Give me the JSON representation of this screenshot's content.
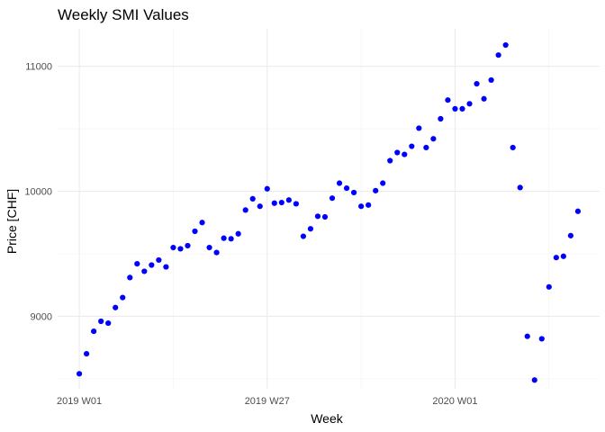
{
  "chart_data": {
    "type": "scatter",
    "title": "Weekly SMI Values",
    "xlabel": "Week",
    "ylabel": "Price [CHF]",
    "x_tick_labels": [
      {
        "week_index": 0,
        "label": "2019 W01"
      },
      {
        "week_index": 26,
        "label": "2019 W27"
      },
      {
        "week_index": 52,
        "label": "2020 W01"
      }
    ],
    "y_ticks": [
      9000,
      10000,
      11000
    ],
    "ylim": [
      8420,
      11300
    ],
    "grid": true,
    "point_color": "#0000ff",
    "series": [
      {
        "x": [
          0,
          1,
          2,
          3,
          4,
          5,
          6,
          7,
          8,
          9,
          10,
          11,
          12,
          13,
          14,
          15,
          16,
          17,
          18,
          19,
          20,
          21,
          22,
          23,
          24,
          25,
          26,
          27,
          28,
          29,
          30,
          31,
          32,
          33,
          34,
          35,
          36,
          37,
          38,
          39,
          40,
          41,
          42,
          43,
          44,
          45,
          46,
          47,
          48,
          49,
          50,
          51,
          52,
          53,
          54,
          55,
          56,
          57,
          58,
          59,
          60,
          61,
          62,
          63,
          64,
          65,
          66,
          67,
          68,
          69
        ],
        "y": [
          8540,
          8700,
          8880,
          8960,
          8945,
          9070,
          9150,
          9310,
          9420,
          9360,
          9410,
          9450,
          9395,
          9550,
          9540,
          9565,
          9680,
          9750,
          9550,
          9510,
          9625,
          9620,
          9660,
          9850,
          9940,
          9880,
          10020,
          9905,
          9910,
          9930,
          9900,
          9640,
          9700,
          9800,
          9795,
          9945,
          10065,
          10025,
          9990,
          9880,
          9890,
          10005,
          10065,
          10245,
          10310,
          10295,
          10360,
          10505,
          10350,
          10420,
          10580,
          10730,
          10660,
          10660,
          10700,
          10860,
          10740,
          10890,
          11090,
          11170,
          10350,
          10030,
          8840,
          8490,
          8820,
          9235,
          9470,
          9480,
          9645,
          9840
        ]
      }
    ]
  }
}
